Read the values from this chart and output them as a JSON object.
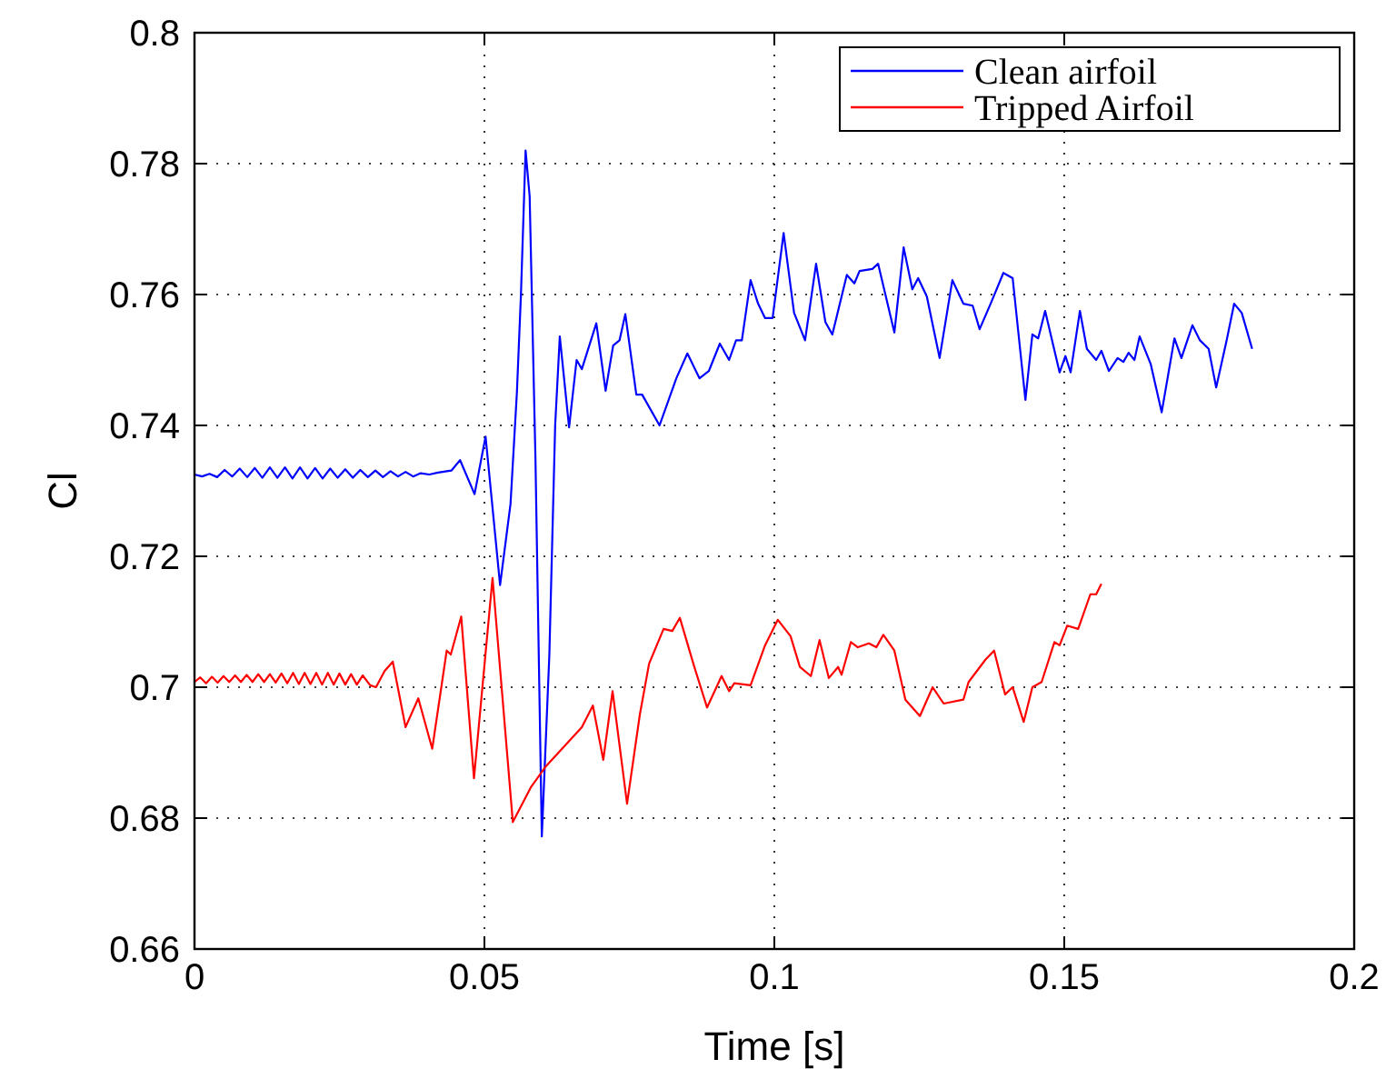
{
  "chart_data": {
    "type": "line",
    "xlabel": "Time [s]",
    "ylabel": "Cl",
    "xlim": [
      0,
      0.2
    ],
    "ylim": [
      0.66,
      0.8
    ],
    "xticks": [
      0,
      0.05,
      0.1,
      0.15,
      0.2
    ],
    "yticks": [
      0.66,
      0.68,
      0.7,
      0.72,
      0.74,
      0.76,
      0.78,
      0.8
    ],
    "grid": true,
    "legend": "top right",
    "line_style": "solid",
    "marker": "none",
    "series": [
      {
        "name": "Clean airfoil",
        "color": "#0000ff",
        "x": [
          0,
          0.0013,
          0.0026,
          0.0039,
          0.0052,
          0.0065,
          0.0078,
          0.0091,
          0.0104,
          0.0117,
          0.013,
          0.0143,
          0.0156,
          0.0169,
          0.0182,
          0.0195,
          0.0208,
          0.0221,
          0.0234,
          0.0247,
          0.026,
          0.0273,
          0.0286,
          0.0299,
          0.0312,
          0.0325,
          0.0338,
          0.0351,
          0.0364,
          0.0377,
          0.039,
          0.0405,
          0.042,
          0.0443,
          0.0458,
          0.0483,
          0.0502,
          0.0527,
          0.0545,
          0.0556,
          0.0563,
          0.0571,
          0.0578,
          0.0588,
          0.0599,
          0.0612,
          0.0622,
          0.063,
          0.0646,
          0.0659,
          0.0668,
          0.0678,
          0.0693,
          0.0709,
          0.0722,
          0.0733,
          0.0743,
          0.0762,
          0.0772,
          0.0802,
          0.0831,
          0.085,
          0.0871,
          0.0887,
          0.0906,
          0.0922,
          0.0934,
          0.0944,
          0.0959,
          0.0972,
          0.0984,
          0.0997,
          0.1016,
          0.1034,
          0.1053,
          0.1072,
          0.1088,
          0.11,
          0.1125,
          0.1138,
          0.1147,
          0.1169,
          0.1179,
          0.1207,
          0.1223,
          0.1238,
          0.1248,
          0.1263,
          0.1285,
          0.1307,
          0.1326,
          0.1342,
          0.1354,
          0.1373,
          0.1395,
          0.1411,
          0.1433,
          0.1445,
          0.1455,
          0.1467,
          0.1492,
          0.1502,
          0.1511,
          0.1527,
          0.1539,
          0.1555,
          0.1564,
          0.1577,
          0.1592,
          0.1602,
          0.1611,
          0.1621,
          0.163,
          0.1649,
          0.1668,
          0.169,
          0.1702,
          0.1721,
          0.1734,
          0.1749,
          0.1762,
          0.178,
          0.1793,
          0.1806,
          0.1824
        ],
        "values": [
          0.7325,
          0.7322,
          0.7326,
          0.7321,
          0.7332,
          0.7322,
          0.7334,
          0.7321,
          0.7335,
          0.732,
          0.7336,
          0.732,
          0.7336,
          0.7319,
          0.7336,
          0.7319,
          0.7335,
          0.7319,
          0.7334,
          0.732,
          0.7333,
          0.732,
          0.7332,
          0.7321,
          0.7331,
          0.7321,
          0.733,
          0.7322,
          0.7329,
          0.7322,
          0.7327,
          0.7325,
          0.7328,
          0.7331,
          0.7347,
          0.7295,
          0.7383,
          0.7156,
          0.728,
          0.745,
          0.76,
          0.782,
          0.775,
          0.735,
          0.6772,
          0.705,
          0.74,
          0.7536,
          0.7397,
          0.75,
          0.7486,
          0.7514,
          0.7556,
          0.7453,
          0.7522,
          0.753,
          0.757,
          0.7447,
          0.7447,
          0.74,
          0.7472,
          0.751,
          0.7472,
          0.7483,
          0.7525,
          0.75,
          0.753,
          0.753,
          0.7622,
          0.7586,
          0.7564,
          0.7564,
          0.7694,
          0.7572,
          0.753,
          0.7647,
          0.7558,
          0.7539,
          0.763,
          0.7617,
          0.7636,
          0.7639,
          0.7647,
          0.7542,
          0.7672,
          0.7608,
          0.7625,
          0.7597,
          0.7503,
          0.7622,
          0.7586,
          0.7583,
          0.7547,
          0.7586,
          0.7633,
          0.7625,
          0.7439,
          0.7539,
          0.7533,
          0.7575,
          0.7481,
          0.7506,
          0.7481,
          0.7575,
          0.7517,
          0.75,
          0.7514,
          0.7483,
          0.7503,
          0.7497,
          0.7511,
          0.75,
          0.7536,
          0.7494,
          0.742,
          0.7533,
          0.7503,
          0.7553,
          0.753,
          0.7517,
          0.7458,
          0.753,
          0.7586,
          0.7572,
          0.7517
        ]
      },
      {
        "name": "Tripped Airfoil",
        "color": "#ff0000",
        "x": [
          0,
          0.001,
          0.002,
          0.003,
          0.004,
          0.005,
          0.006,
          0.007,
          0.008,
          0.009,
          0.01,
          0.011,
          0.012,
          0.013,
          0.014,
          0.015,
          0.016,
          0.017,
          0.018,
          0.019,
          0.02,
          0.021,
          0.022,
          0.023,
          0.024,
          0.025,
          0.026,
          0.027,
          0.028,
          0.029,
          0.0303,
          0.0313,
          0.0328,
          0.0342,
          0.0364,
          0.0386,
          0.041,
          0.0435,
          0.0442,
          0.046,
          0.0482,
          0.0514,
          0.0549,
          0.058,
          0.0605,
          0.0668,
          0.0687,
          0.0705,
          0.0721,
          0.0746,
          0.0768,
          0.0784,
          0.0809,
          0.0824,
          0.0837,
          0.0862,
          0.0884,
          0.0909,
          0.0922,
          0.0931,
          0.0959,
          0.0984,
          0.1006,
          0.1028,
          0.1044,
          0.1063,
          0.1078,
          0.1094,
          0.111,
          0.1116,
          0.1132,
          0.1144,
          0.1163,
          0.1176,
          0.1188,
          0.1207,
          0.1226,
          0.1251,
          0.1273,
          0.1292,
          0.1326,
          0.1335,
          0.1364,
          0.1379,
          0.1398,
          0.1411,
          0.143,
          0.1445,
          0.1461,
          0.1483,
          0.1492,
          0.1505,
          0.1524,
          0.1545,
          0.1555,
          0.1564
        ],
        "values": [
          0.7008,
          0.7015,
          0.7006,
          0.7016,
          0.7007,
          0.7017,
          0.7008,
          0.7018,
          0.7008,
          0.7019,
          0.7008,
          0.702,
          0.7008,
          0.702,
          0.7007,
          0.7021,
          0.7006,
          0.7022,
          0.7005,
          0.7022,
          0.7005,
          0.7022,
          0.7004,
          0.7022,
          0.7004,
          0.7021,
          0.7004,
          0.702,
          0.7004,
          0.7018,
          0.7003,
          0.7,
          0.7025,
          0.7039,
          0.6939,
          0.6983,
          0.6906,
          0.7056,
          0.705,
          0.7108,
          0.6861,
          0.7167,
          0.6794,
          0.6847,
          0.6878,
          0.6939,
          0.6972,
          0.6889,
          0.6994,
          0.6822,
          0.6958,
          0.7036,
          0.7089,
          0.7086,
          0.7106,
          0.7031,
          0.6969,
          0.7017,
          0.6994,
          0.7006,
          0.7003,
          0.7064,
          0.7103,
          0.7078,
          0.7031,
          0.7017,
          0.7072,
          0.7014,
          0.7031,
          0.7019,
          0.7069,
          0.7061,
          0.7067,
          0.7061,
          0.708,
          0.7056,
          0.6981,
          0.6956,
          0.7,
          0.6975,
          0.6981,
          0.7008,
          0.7042,
          0.7056,
          0.6989,
          0.7,
          0.6947,
          0.7,
          0.7008,
          0.7069,
          0.7064,
          0.7094,
          0.7089,
          0.7142,
          0.7142,
          0.7158
        ]
      }
    ]
  }
}
